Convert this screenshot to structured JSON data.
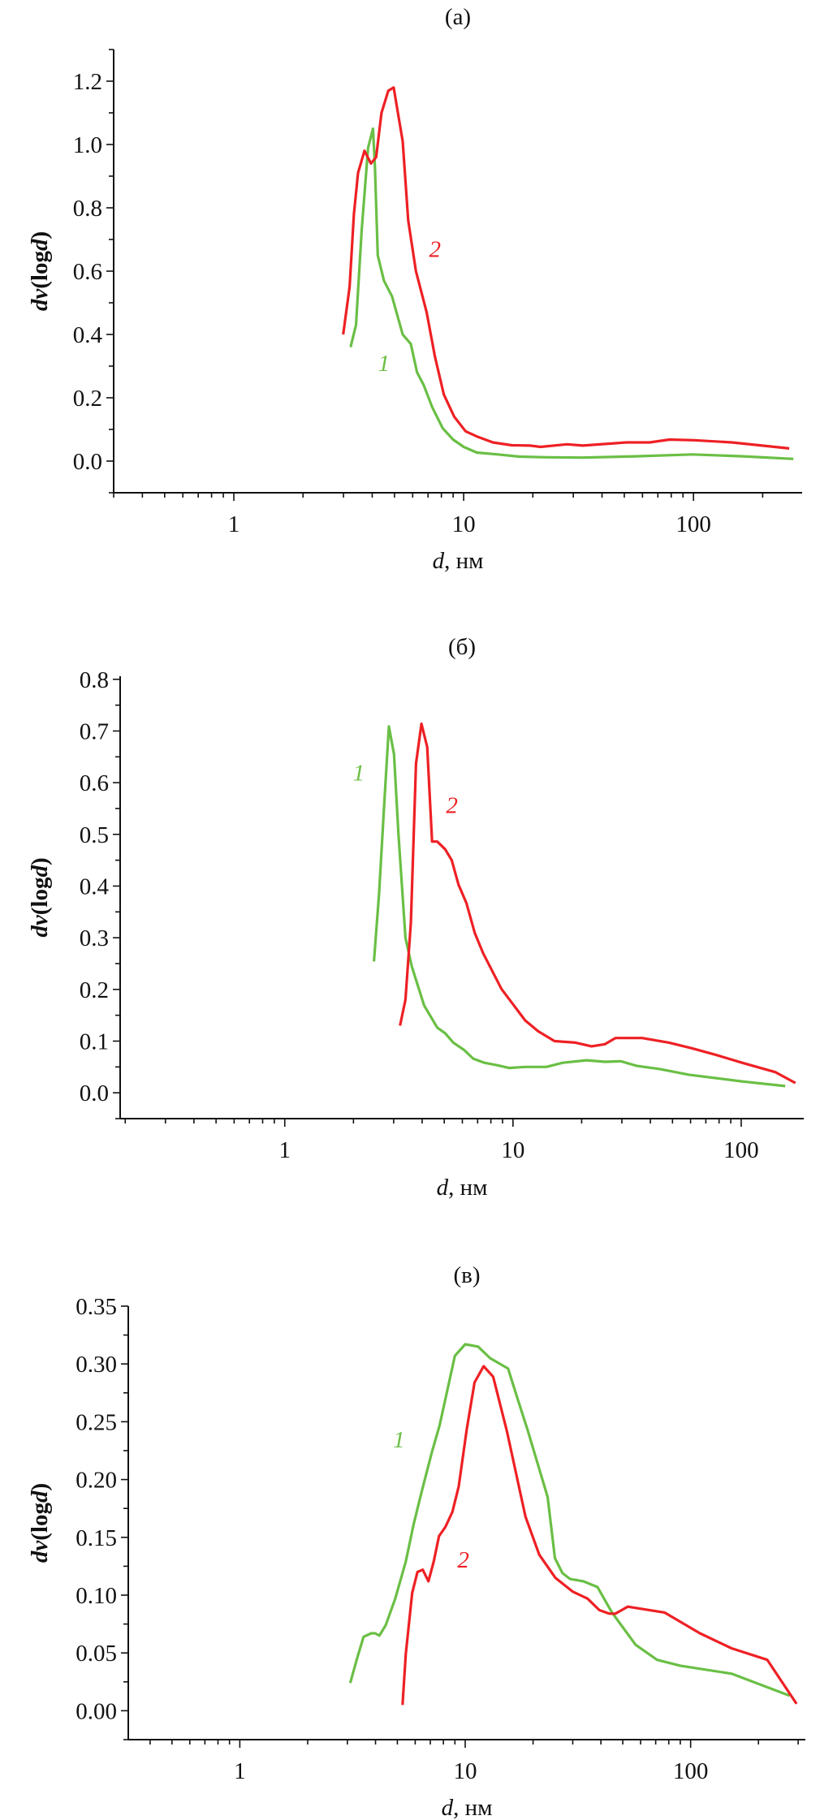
{
  "colors": {
    "series1": "#6abf45",
    "series2": "#ee2024",
    "axis": "#111111"
  },
  "chart_data": [
    {
      "type": "line",
      "title": "(a)",
      "xlabel_var": "d",
      "xlabel_unit": ", нм",
      "ylabel_var1": "dv",
      "ylabel_mid": "(log",
      "ylabel_var2": "d",
      "ylabel_end": ")",
      "xscale": "log",
      "xlim": [
        0.3,
        297
      ],
      "ylim": [
        -0.1,
        1.3
      ],
      "yticks": [
        0.0,
        0.2,
        0.4,
        0.6,
        0.8,
        1.0,
        1.2
      ],
      "ytick_labels": [
        "0.0",
        "0.2",
        "0.4",
        "0.6",
        "0.8",
        "1.0",
        "1.2"
      ],
      "yminor_step": 0.1,
      "xticks": [
        1,
        10,
        100
      ],
      "xtick_labels": [
        "1",
        "10",
        "100"
      ],
      "grid": false,
      "series": [
        {
          "name": "1",
          "color_key": "series1",
          "label_pos": [
            4.5,
            0.31
          ],
          "x": [
            3.22,
            3.4,
            3.6,
            3.84,
            4.03,
            4.11,
            4.23,
            4.5,
            4.88,
            5.43,
            5.89,
            6.27,
            6.7,
            7.3,
            8.1,
            9.0,
            10.0,
            11.4,
            14.1,
            17.5,
            22.8,
            33,
            56,
            99,
            164,
            272
          ],
          "y": [
            0.36,
            0.43,
            0.73,
            0.99,
            1.05,
            0.93,
            0.65,
            0.57,
            0.52,
            0.4,
            0.37,
            0.28,
            0.24,
            0.17,
            0.104,
            0.068,
            0.045,
            0.027,
            0.021,
            0.014,
            0.012,
            0.011,
            0.015,
            0.021,
            0.015,
            0.007
          ]
        },
        {
          "name": "2",
          "color_key": "series2",
          "label_pos": [
            7.5,
            0.67
          ],
          "x": [
            2.99,
            3.19,
            3.33,
            3.47,
            3.7,
            3.95,
            4.16,
            4.39,
            4.7,
            4.96,
            5.43,
            5.74,
            6.2,
            6.9,
            7.5,
            8.2,
            9.1,
            10.2,
            11.4,
            13.4,
            16.2,
            19.4,
            21.6,
            28.2,
            33,
            50.9,
            64.5,
            78.6,
            101,
            147,
            261
          ],
          "y": [
            0.4,
            0.55,
            0.78,
            0.91,
            0.98,
            0.94,
            0.96,
            1.1,
            1.17,
            1.18,
            1.01,
            0.76,
            0.6,
            0.47,
            0.33,
            0.21,
            0.14,
            0.094,
            0.078,
            0.059,
            0.05,
            0.049,
            0.045,
            0.053,
            0.049,
            0.059,
            0.059,
            0.068,
            0.066,
            0.059,
            0.04
          ]
        }
      ]
    },
    {
      "type": "line",
      "title": "(б)",
      "xlabel_var": "d",
      "xlabel_unit": ", нм",
      "ylabel_var1": "dv",
      "ylabel_mid": "(log",
      "ylabel_var2": "d",
      "ylabel_end": ")",
      "xscale": "log",
      "xlim": [
        0.19,
        188
      ],
      "ylim": [
        -0.05,
        0.806
      ],
      "yticks": [
        0.0,
        0.1,
        0.2,
        0.3,
        0.4,
        0.5,
        0.6,
        0.7,
        0.8
      ],
      "ytick_labels": [
        "0.0",
        "0.1",
        "0.2",
        "0.3",
        "0.4",
        "0.5",
        "0.6",
        "0.7",
        "0.8"
      ],
      "yminor_step": 0.05,
      "xticks": [
        1,
        10,
        100
      ],
      "xtick_labels": [
        "1",
        "10",
        "100"
      ],
      "grid": false,
      "series": [
        {
          "name": "1",
          "color_key": "series1",
          "label_pos": [
            2.11,
            0.62
          ],
          "x": [
            2.46,
            2.59,
            2.73,
            2.86,
            3.01,
            3.15,
            3.38,
            3.6,
            4.08,
            4.66,
            5.05,
            5.48,
            6.1,
            6.7,
            7.5,
            8.6,
            9.6,
            11.3,
            14.0,
            16.5,
            21,
            25.3,
            29.7,
            35,
            44,
            59,
            101,
            156
          ],
          "y": [
            0.254,
            0.385,
            0.56,
            0.709,
            0.655,
            0.5,
            0.3,
            0.245,
            0.169,
            0.126,
            0.115,
            0.097,
            0.083,
            0.066,
            0.058,
            0.053,
            0.048,
            0.05,
            0.05,
            0.058,
            0.063,
            0.06,
            0.061,
            0.052,
            0.046,
            0.035,
            0.022,
            0.013
          ]
        },
        {
          "name": "2",
          "color_key": "series2",
          "label_pos": [
            5.4,
            0.557
          ],
          "x": [
            3.2,
            3.38,
            3.57,
            3.76,
            3.97,
            4.21,
            4.42,
            4.66,
            5.05,
            5.39,
            5.77,
            6.25,
            6.8,
            7.4,
            8.9,
            11.3,
            12.9,
            15.2,
            18.8,
            22.1,
            25.3,
            28.1,
            36.8,
            48.3,
            61,
            78,
            101,
            141,
            173
          ],
          "y": [
            0.13,
            0.18,
            0.33,
            0.637,
            0.714,
            0.669,
            0.486,
            0.486,
            0.471,
            0.45,
            0.403,
            0.367,
            0.309,
            0.27,
            0.201,
            0.14,
            0.119,
            0.1,
            0.097,
            0.09,
            0.094,
            0.106,
            0.106,
            0.097,
            0.086,
            0.073,
            0.058,
            0.04,
            0.019
          ]
        }
      ]
    },
    {
      "type": "line",
      "title": "(в)",
      "xlabel_var": "d",
      "xlabel_unit": ", нм",
      "ylabel_var1": "dv",
      "ylabel_mid": "(log",
      "ylabel_var2": "d",
      "ylabel_end": ")",
      "xscale": "log",
      "xlim": [
        0.32,
        323
      ],
      "ylim": [
        -0.025,
        0.35
      ],
      "yticks": [
        0.0,
        0.05,
        0.1,
        0.15,
        0.2,
        0.25,
        0.3,
        0.35
      ],
      "ytick_labels": [
        "0.00",
        "0.05",
        "0.10",
        "0.15",
        "0.20",
        "0.25",
        "0.30",
        "0.35"
      ],
      "yminor_step": 0.025,
      "xticks": [
        1,
        10,
        100
      ],
      "xtick_labels": [
        "1",
        "10",
        "100"
      ],
      "grid": false,
      "series": [
        {
          "name": "1",
          "color_key": "series1",
          "label_pos": [
            5.08,
            0.235
          ],
          "x": [
            3.09,
            3.31,
            3.54,
            3.83,
            3.98,
            4.16,
            4.44,
            4.89,
            5.45,
            5.9,
            6.4,
            7.1,
            7.7,
            9.0,
            10.0,
            11.4,
            12.9,
            15.5,
            17.0,
            18.9,
            23.2,
            25.0,
            27.0,
            29.2,
            33.4,
            38.6,
            44.8,
            57,
            71,
            90,
            152,
            275
          ],
          "y": [
            0.024,
            0.045,
            0.064,
            0.067,
            0.067,
            0.065,
            0.074,
            0.097,
            0.129,
            0.161,
            0.189,
            0.223,
            0.247,
            0.307,
            0.317,
            0.315,
            0.305,
            0.296,
            0.271,
            0.243,
            0.185,
            0.132,
            0.119,
            0.114,
            0.112,
            0.107,
            0.085,
            0.057,
            0.044,
            0.039,
            0.032,
            0.013
          ]
        },
        {
          "name": "2",
          "color_key": "series2",
          "label_pos": [
            9.8,
            0.131
          ],
          "x": [
            5.27,
            5.45,
            5.82,
            6.14,
            6.48,
            6.87,
            7.25,
            7.65,
            8.17,
            8.77,
            9.36,
            10.15,
            11.0,
            12.07,
            13.3,
            15.3,
            18.5,
            21.3,
            25.1,
            30.0,
            34.9,
            39.4,
            43.5,
            46.4,
            52.6,
            76.6,
            110,
            152,
            219,
            295
          ],
          "y": [
            0.005,
            0.049,
            0.102,
            0.12,
            0.122,
            0.112,
            0.129,
            0.151,
            0.159,
            0.172,
            0.194,
            0.243,
            0.284,
            0.298,
            0.289,
            0.242,
            0.168,
            0.135,
            0.115,
            0.103,
            0.097,
            0.087,
            0.084,
            0.084,
            0.09,
            0.085,
            0.067,
            0.054,
            0.044,
            0.006
          ]
        }
      ]
    }
  ]
}
